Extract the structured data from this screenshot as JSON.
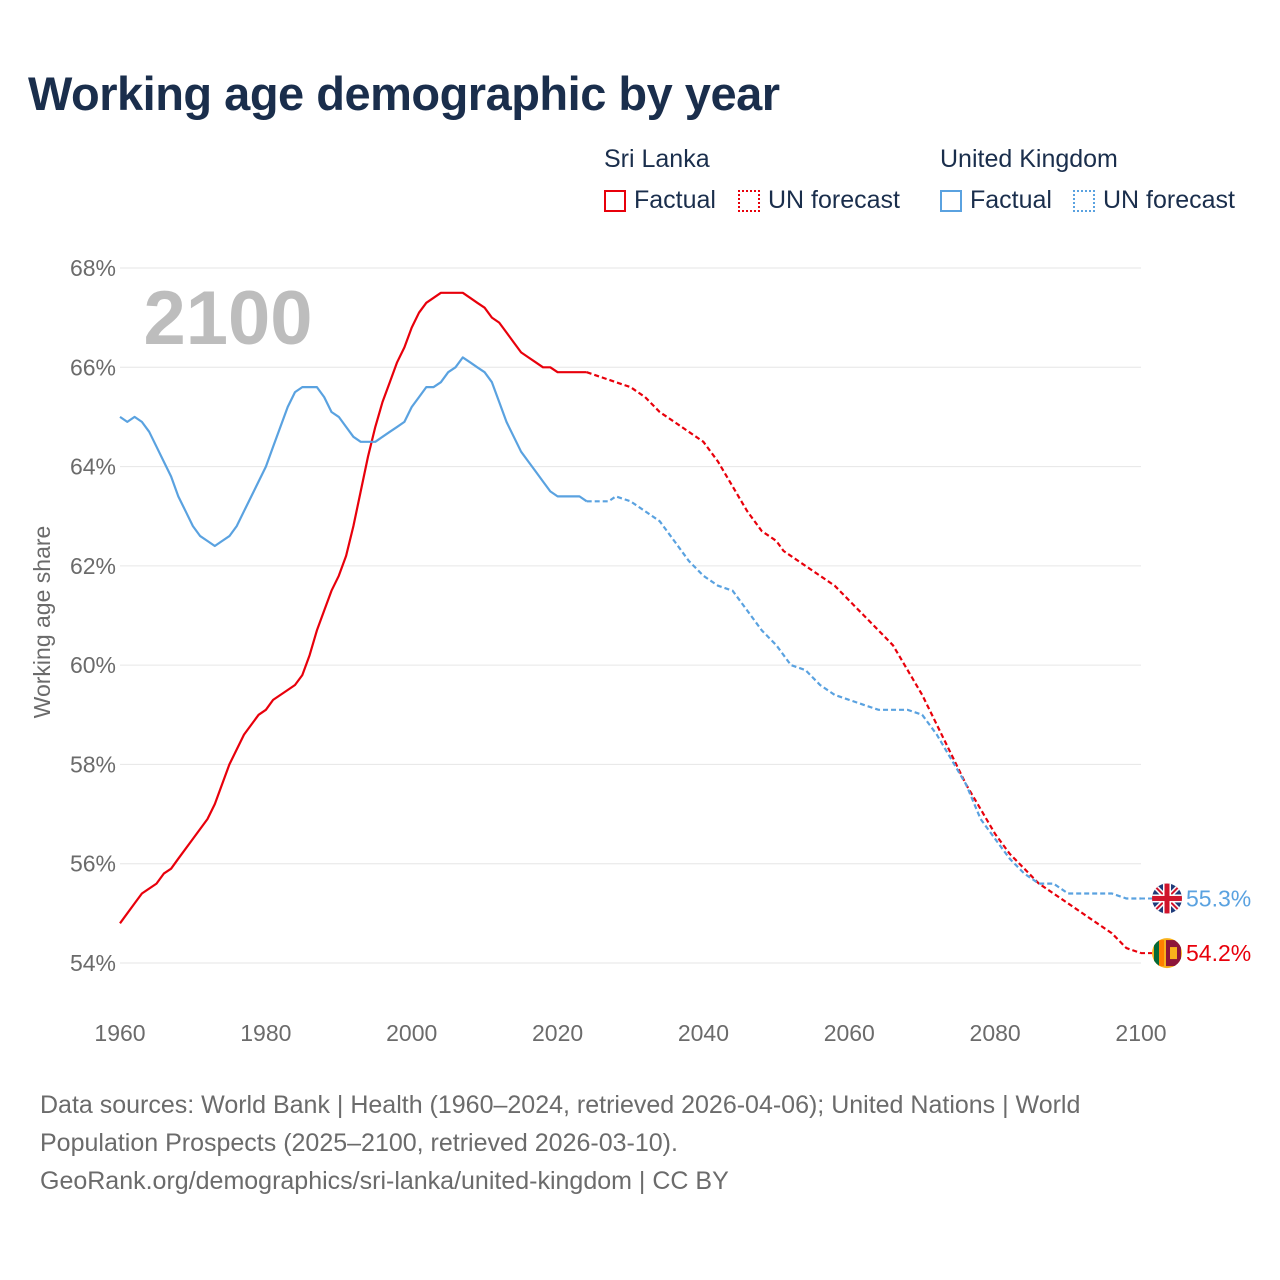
{
  "header": {
    "title": "Working age demographic by year"
  },
  "legend": {
    "groups": [
      {
        "name": "Sri Lanka",
        "factual_label": "Factual",
        "forecast_label": "UN forecast",
        "color": "#e8000b"
      },
      {
        "name": "United Kingdom",
        "factual_label": "Factual",
        "forecast_label": "UN forecast",
        "color": "#5aa2e0"
      }
    ]
  },
  "chart_data": {
    "type": "line",
    "title": "Working age demographic by year",
    "xlabel": "",
    "ylabel": "Working age share",
    "year_overlay": "2100",
    "xlim": [
      1960,
      2100
    ],
    "ylim": [
      53.5,
      68
    ],
    "x_ticks": [
      "1960",
      "1980",
      "2000",
      "2020",
      "2040",
      "2060",
      "2080",
      "2100"
    ],
    "y_ticks": [
      "54%",
      "56%",
      "58%",
      "60%",
      "62%",
      "64%",
      "66%",
      "68%"
    ],
    "factual_end_year": 2024,
    "series": [
      {
        "name": "Sri Lanka",
        "color": "#e8000b",
        "end_label": "54.2%",
        "points": [
          [
            1960,
            54.8
          ],
          [
            1962,
            55.2
          ],
          [
            1963,
            55.4
          ],
          [
            1965,
            55.6
          ],
          [
            1966,
            55.8
          ],
          [
            1967,
            55.9
          ],
          [
            1968,
            56.1
          ],
          [
            1970,
            56.5
          ],
          [
            1972,
            56.9
          ],
          [
            1973,
            57.2
          ],
          [
            1975,
            58.0
          ],
          [
            1977,
            58.6
          ],
          [
            1979,
            59.0
          ],
          [
            1980,
            59.1
          ],
          [
            1981,
            59.3
          ],
          [
            1983,
            59.5
          ],
          [
            1984,
            59.6
          ],
          [
            1985,
            59.8
          ],
          [
            1986,
            60.2
          ],
          [
            1987,
            60.7
          ],
          [
            1988,
            61.1
          ],
          [
            1989,
            61.5
          ],
          [
            1990,
            61.8
          ],
          [
            1991,
            62.2
          ],
          [
            1992,
            62.8
          ],
          [
            1993,
            63.5
          ],
          [
            1994,
            64.2
          ],
          [
            1995,
            64.8
          ],
          [
            1996,
            65.3
          ],
          [
            1997,
            65.7
          ],
          [
            1998,
            66.1
          ],
          [
            1999,
            66.4
          ],
          [
            2000,
            66.8
          ],
          [
            2001,
            67.1
          ],
          [
            2002,
            67.3
          ],
          [
            2003,
            67.4
          ],
          [
            2004,
            67.5
          ],
          [
            2005,
            67.5
          ],
          [
            2006,
            67.5
          ],
          [
            2007,
            67.5
          ],
          [
            2008,
            67.4
          ],
          [
            2009,
            67.3
          ],
          [
            2010,
            67.2
          ],
          [
            2011,
            67.0
          ],
          [
            2012,
            66.9
          ],
          [
            2013,
            66.7
          ],
          [
            2014,
            66.5
          ],
          [
            2015,
            66.3
          ],
          [
            2016,
            66.2
          ],
          [
            2017,
            66.1
          ],
          [
            2018,
            66.0
          ],
          [
            2019,
            66.0
          ],
          [
            2020,
            65.9
          ],
          [
            2022,
            65.9
          ],
          [
            2024,
            65.9
          ],
          [
            2026,
            65.8
          ],
          [
            2028,
            65.7
          ],
          [
            2030,
            65.6
          ],
          [
            2032,
            65.4
          ],
          [
            2034,
            65.1
          ],
          [
            2036,
            64.9
          ],
          [
            2038,
            64.7
          ],
          [
            2040,
            64.5
          ],
          [
            2042,
            64.1
          ],
          [
            2044,
            63.6
          ],
          [
            2046,
            63.1
          ],
          [
            2048,
            62.7
          ],
          [
            2050,
            62.5
          ],
          [
            2051,
            62.3
          ],
          [
            2052,
            62.2
          ],
          [
            2054,
            62.0
          ],
          [
            2056,
            61.8
          ],
          [
            2058,
            61.6
          ],
          [
            2060,
            61.3
          ],
          [
            2062,
            61.0
          ],
          [
            2064,
            60.7
          ],
          [
            2066,
            60.4
          ],
          [
            2068,
            59.9
          ],
          [
            2070,
            59.4
          ],
          [
            2072,
            58.8
          ],
          [
            2074,
            58.2
          ],
          [
            2076,
            57.6
          ],
          [
            2078,
            57.1
          ],
          [
            2080,
            56.6
          ],
          [
            2082,
            56.2
          ],
          [
            2084,
            55.9
          ],
          [
            2086,
            55.6
          ],
          [
            2088,
            55.4
          ],
          [
            2090,
            55.2
          ],
          [
            2092,
            55.0
          ],
          [
            2094,
            54.8
          ],
          [
            2096,
            54.6
          ],
          [
            2098,
            54.3
          ],
          [
            2100,
            54.2
          ]
        ]
      },
      {
        "name": "United Kingdom",
        "color": "#5aa2e0",
        "end_label": "55.3%",
        "points": [
          [
            1960,
            65.0
          ],
          [
            1961,
            64.9
          ],
          [
            1962,
            65.0
          ],
          [
            1963,
            64.9
          ],
          [
            1964,
            64.7
          ],
          [
            1965,
            64.4
          ],
          [
            1966,
            64.1
          ],
          [
            1967,
            63.8
          ],
          [
            1968,
            63.4
          ],
          [
            1969,
            63.1
          ],
          [
            1970,
            62.8
          ],
          [
            1971,
            62.6
          ],
          [
            1972,
            62.5
          ],
          [
            1973,
            62.4
          ],
          [
            1974,
            62.5
          ],
          [
            1975,
            62.6
          ],
          [
            1976,
            62.8
          ],
          [
            1977,
            63.1
          ],
          [
            1978,
            63.4
          ],
          [
            1979,
            63.7
          ],
          [
            1980,
            64.0
          ],
          [
            1981,
            64.4
          ],
          [
            1982,
            64.8
          ],
          [
            1983,
            65.2
          ],
          [
            1984,
            65.5
          ],
          [
            1985,
            65.6
          ],
          [
            1986,
            65.6
          ],
          [
            1987,
            65.6
          ],
          [
            1988,
            65.4
          ],
          [
            1989,
            65.1
          ],
          [
            1990,
            65.0
          ],
          [
            1991,
            64.8
          ],
          [
            1992,
            64.6
          ],
          [
            1993,
            64.5
          ],
          [
            1994,
            64.5
          ],
          [
            1995,
            64.5
          ],
          [
            1996,
            64.6
          ],
          [
            1997,
            64.7
          ],
          [
            1998,
            64.8
          ],
          [
            1999,
            64.9
          ],
          [
            2000,
            65.2
          ],
          [
            2001,
            65.4
          ],
          [
            2002,
            65.6
          ],
          [
            2003,
            65.6
          ],
          [
            2004,
            65.7
          ],
          [
            2005,
            65.9
          ],
          [
            2006,
            66.0
          ],
          [
            2007,
            66.2
          ],
          [
            2008,
            66.1
          ],
          [
            2009,
            66.0
          ],
          [
            2010,
            65.9
          ],
          [
            2011,
            65.7
          ],
          [
            2012,
            65.3
          ],
          [
            2013,
            64.9
          ],
          [
            2014,
            64.6
          ],
          [
            2015,
            64.3
          ],
          [
            2016,
            64.1
          ],
          [
            2017,
            63.9
          ],
          [
            2018,
            63.7
          ],
          [
            2019,
            63.5
          ],
          [
            2020,
            63.4
          ],
          [
            2022,
            63.4
          ],
          [
            2023,
            63.4
          ],
          [
            2024,
            63.3
          ],
          [
            2026,
            63.3
          ],
          [
            2027,
            63.3
          ],
          [
            2028,
            63.4
          ],
          [
            2030,
            63.3
          ],
          [
            2032,
            63.1
          ],
          [
            2034,
            62.9
          ],
          [
            2036,
            62.5
          ],
          [
            2038,
            62.1
          ],
          [
            2040,
            61.8
          ],
          [
            2042,
            61.6
          ],
          [
            2044,
            61.5
          ],
          [
            2046,
            61.1
          ],
          [
            2048,
            60.7
          ],
          [
            2050,
            60.4
          ],
          [
            2052,
            60.0
          ],
          [
            2054,
            59.9
          ],
          [
            2056,
            59.6
          ],
          [
            2058,
            59.4
          ],
          [
            2060,
            59.3
          ],
          [
            2062,
            59.2
          ],
          [
            2064,
            59.1
          ],
          [
            2066,
            59.1
          ],
          [
            2068,
            59.1
          ],
          [
            2070,
            59.0
          ],
          [
            2072,
            58.6
          ],
          [
            2074,
            58.1
          ],
          [
            2076,
            57.6
          ],
          [
            2078,
            56.9
          ],
          [
            2080,
            56.5
          ],
          [
            2082,
            56.1
          ],
          [
            2084,
            55.8
          ],
          [
            2086,
            55.6
          ],
          [
            2088,
            55.6
          ],
          [
            2090,
            55.4
          ],
          [
            2092,
            55.4
          ],
          [
            2094,
            55.4
          ],
          [
            2096,
            55.4
          ],
          [
            2098,
            55.3
          ],
          [
            2100,
            55.3
          ]
        ]
      }
    ]
  },
  "footer": {
    "line1": "Data sources: World Bank | Health (1960–2024, retrieved 2026-04-06); United Nations | World",
    "line2": "Population Prospects (2025–2100, retrieved 2026-03-10).",
    "line3": "GeoRank.org/demographics/sri-lanka/united-kingdom | CC BY"
  }
}
